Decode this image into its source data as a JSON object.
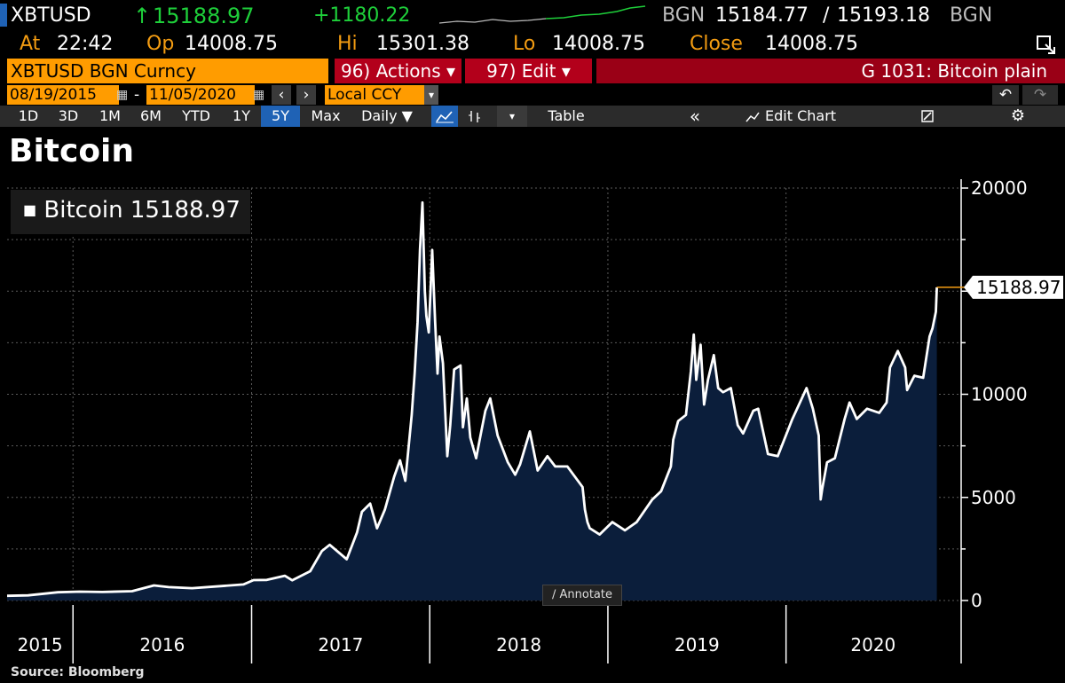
{
  "header": {
    "ticker": "XBTUSD",
    "arrow": "↑",
    "last": "15188.97",
    "change": "+1180.22",
    "bgn1": "BGN",
    "bid": "15184.77",
    "slash": "/",
    "ask": "15193.18",
    "bgn2": "BGN",
    "at_label": "At",
    "at_value": "22:42",
    "op_label": "Op",
    "op_value": "14008.75",
    "hi_label": "Hi",
    "hi_value": "15301.38",
    "lo_label": "Lo",
    "lo_value": "14008.75",
    "close_label": "Close",
    "close_value": "14008.75"
  },
  "bar": {
    "security": "XBTUSD BGN Curncy",
    "actions": "96) Actions ▾",
    "edit": "97) Edit ▾",
    "chart_name": "G 1031: Bitcoin plain"
  },
  "range": {
    "start": "08/19/2015",
    "end": "11/05/2020",
    "dash": "-",
    "prev": "‹",
    "next": "›",
    "currency": "Local CCY",
    "undo": "↶",
    "redo": "↷"
  },
  "toolbar": {
    "periods": [
      "1D",
      "3D",
      "1M",
      "6M",
      "YTD",
      "1Y",
      "5Y",
      "Max"
    ],
    "active_period": "5Y",
    "frequency": "Daily ▼",
    "table": "Table",
    "collapse": "«",
    "edit_chart": "Edit Chart",
    "gear": "⚙"
  },
  "title": "Bitcoin",
  "legend": {
    "marker": "■",
    "label": "Bitcoin 15188.97"
  },
  "annotate": "∕ Annotate",
  "source": "Source: Bloomberg",
  "colors": {
    "line": "#ffffff",
    "area": "#0b1e3b",
    "last_tag": "#f39c12",
    "accent": "#ff9c00"
  },
  "chart_data": {
    "type": "area",
    "series": [
      {
        "name": "Bitcoin",
        "x": [
          "2015-08-19",
          "2015-10-01",
          "2015-12-01",
          "2016-01-15",
          "2016-03-01",
          "2016-05-01",
          "2016-06-15",
          "2016-07-15",
          "2016-09-01",
          "2016-11-01",
          "2016-12-15",
          "2017-01-05",
          "2017-02-01",
          "2017-03-10",
          "2017-03-25",
          "2017-05-01",
          "2017-05-25",
          "2017-06-10",
          "2017-07-15",
          "2017-08-05",
          "2017-08-15",
          "2017-09-01",
          "2017-09-15",
          "2017-10-01",
          "2017-10-20",
          "2017-11-01",
          "2017-11-12",
          "2017-11-25",
          "2017-12-01",
          "2017-12-07",
          "2017-12-12",
          "2017-12-17",
          "2017-12-22",
          "2017-12-25",
          "2017-12-30",
          "2018-01-06",
          "2018-01-12",
          "2018-01-17",
          "2018-01-21",
          "2018-01-28",
          "2018-02-06",
          "2018-02-12",
          "2018-02-20",
          "2018-03-05",
          "2018-03-10",
          "2018-03-18",
          "2018-03-25",
          "2018-04-06",
          "2018-04-15",
          "2018-04-25",
          "2018-05-05",
          "2018-05-20",
          "2018-06-10",
          "2018-06-25",
          "2018-07-05",
          "2018-07-25",
          "2018-08-10",
          "2018-08-30",
          "2018-09-15",
          "2018-10-10",
          "2018-11-10",
          "2018-11-15",
          "2018-11-20",
          "2018-11-25",
          "2018-12-15",
          "2019-01-10",
          "2019-02-05",
          "2019-03-01",
          "2019-04-02",
          "2019-04-20",
          "2019-05-10",
          "2019-05-15",
          "2019-05-25",
          "2019-06-10",
          "2019-06-20",
          "2019-06-26",
          "2019-07-01",
          "2019-07-10",
          "2019-07-17",
          "2019-07-25",
          "2019-08-06",
          "2019-08-15",
          "2019-08-25",
          "2019-09-10",
          "2019-09-24",
          "2019-10-05",
          "2019-10-26",
          "2019-11-05",
          "2019-11-25",
          "2019-12-15",
          "2020-01-14",
          "2020-02-12",
          "2020-02-25",
          "2020-03-08",
          "2020-03-12",
          "2020-03-15",
          "2020-03-25",
          "2020-04-10",
          "2020-04-30",
          "2020-05-10",
          "2020-05-25",
          "2020-06-15",
          "2020-07-10",
          "2020-07-25",
          "2020-08-01",
          "2020-08-17",
          "2020-09-01",
          "2020-09-05",
          "2020-09-20",
          "2020-10-08",
          "2020-10-21",
          "2020-10-27",
          "2020-11-03",
          "2020-11-05"
        ],
        "y": [
          230,
          250,
          400,
          430,
          415,
          450,
          730,
          650,
          600,
          700,
          780,
          990,
          1000,
          1200,
          980,
          1420,
          2400,
          2700,
          2000,
          3300,
          4300,
          4700,
          3500,
          4400,
          6000,
          6800,
          5800,
          9000,
          11000,
          13500,
          17000,
          19300,
          15000,
          13800,
          13000,
          17000,
          13500,
          11000,
          12800,
          11500,
          7000,
          8500,
          11200,
          11400,
          8400,
          9800,
          7900,
          6900,
          8000,
          9200,
          9800,
          8000,
          6700,
          6100,
          6600,
          8200,
          6300,
          7000,
          6500,
          6500,
          5500,
          4400,
          3800,
          3500,
          3200,
          3800,
          3400,
          3800,
          4900,
          5300,
          6500,
          7800,
          8700,
          9000,
          11100,
          12900,
          10700,
          12400,
          9500,
          10700,
          11900,
          10300,
          10100,
          10300,
          8500,
          8100,
          9200,
          9300,
          7100,
          7000,
          8800,
          10300,
          9300,
          8000,
          4900,
          5400,
          6700,
          6900,
          8800,
          9600,
          8800,
          9300,
          9100,
          9600,
          11300,
          12100,
          11300,
          10200,
          10900,
          10800,
          12800,
          13200,
          14000,
          15188.97
        ]
      }
    ],
    "y_ticks": [
      0,
      5000,
      10000,
      15000,
      20000
    ],
    "y_tick_labels": [
      "0",
      "5000",
      "10000",
      "",
      "20000"
    ],
    "x_tick_labels": [
      "2015",
      "2016",
      "2017",
      "2018",
      "2019",
      "2020"
    ],
    "last_value_label": "15188.97",
    "ylim": [
      0,
      20000
    ],
    "xlim": [
      "2015-08-19",
      "2020-12-23"
    ],
    "grid": true,
    "legend_position": "top-left"
  }
}
